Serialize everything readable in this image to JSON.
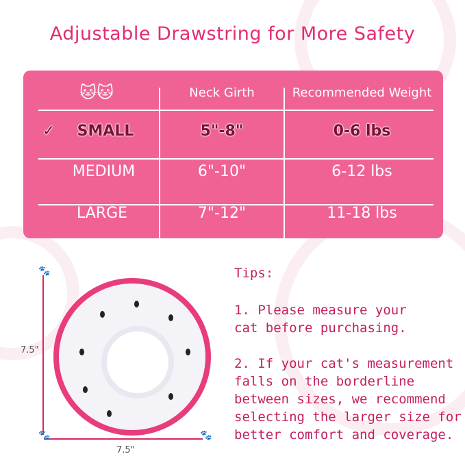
{
  "title": "Adjustable Drawstring for More Safety",
  "table": {
    "icon": "cat-icons",
    "headers": [
      "Neck Girth",
      "Recommended Weight"
    ],
    "rows": [
      {
        "size": "SMALL",
        "neck": "5\"-8\"",
        "weight": "0-6 lbs",
        "selected": true
      },
      {
        "size": "MEDIUM",
        "neck": "6\"-10\"",
        "weight": "6-12 lbs"
      },
      {
        "size": "LARGE",
        "neck": "7\"-12\"",
        "weight": "11-18 lbs"
      }
    ],
    "check": "✓"
  },
  "dimensions": {
    "height": "7.5\"",
    "width": "7.5\""
  },
  "tips": {
    "heading": "Tips:",
    "lines1": [
      "1. Please measure your",
      "cat before purchasing."
    ],
    "lines2": [
      "2. If your cat's measurement",
      "falls on the borderline",
      "between sizes, we recommend",
      "selecting the larger size for",
      "better comfort and coverage."
    ]
  },
  "colors": {
    "pink": "#f06296",
    "title": "#e22d74",
    "selected_text": "#7a1235"
  }
}
